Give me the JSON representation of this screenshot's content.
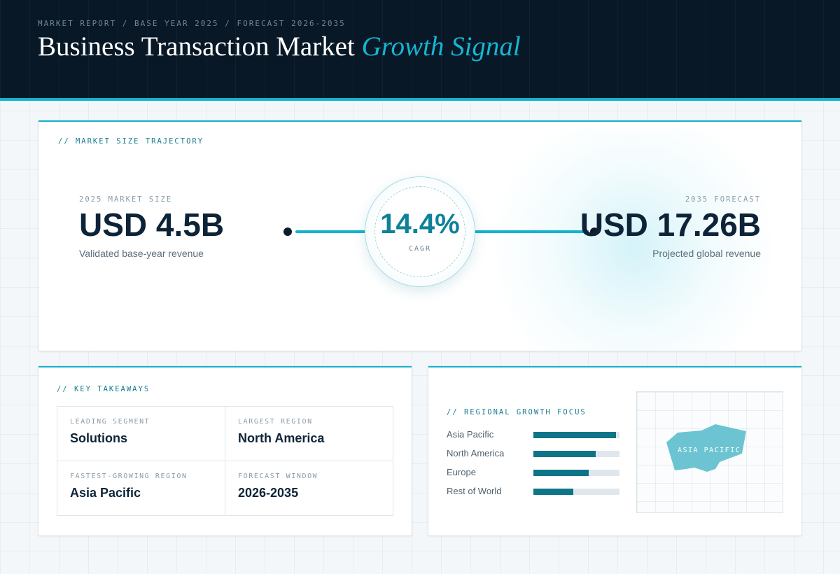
{
  "header": {
    "eyebrow": "MARKET REPORT / BASE YEAR 2025 / FORECAST 2026-2035",
    "title_main": "Business Transaction Market",
    "title_accent": "Growth Signal"
  },
  "trajectory": {
    "label": "// MARKET SIZE TRAJECTORY",
    "start": {
      "label": "2025 MARKET SIZE",
      "value": "USD 4.5B",
      "note": "Validated base-year revenue"
    },
    "end": {
      "label": "2035 FORECAST",
      "value": "USD 17.26B",
      "note": "Projected global revenue"
    },
    "cagr": {
      "value": "14.4%",
      "label": "CAGR"
    },
    "colors": {
      "accent": "#12b3cf",
      "dark": "#0d2438",
      "teal": "#0e8198"
    }
  },
  "takeaways": {
    "label": "// KEY TAKEAWAYS",
    "items": [
      {
        "label": "LEADING SEGMENT",
        "value": "Solutions"
      },
      {
        "label": "LARGEST REGION",
        "value": "North America"
      },
      {
        "label": "FASTEST-GROWING REGION",
        "value": "Asia Pacific"
      },
      {
        "label": "FORECAST WINDOW",
        "value": "2026-2035"
      }
    ]
  },
  "regional": {
    "label": "// REGIONAL GROWTH FOCUS",
    "bars": [
      {
        "name": "Asia Pacific",
        "level": 0.96
      },
      {
        "name": "North America",
        "level": 0.72
      },
      {
        "name": "Europe",
        "level": 0.64
      },
      {
        "name": "Rest of World",
        "level": 0.46
      }
    ],
    "map_label": "ASIA PACIFIC",
    "colors": {
      "bar": "#0e7488",
      "track": "#dfe7ec",
      "map_shape": "#6cc4d2"
    }
  }
}
